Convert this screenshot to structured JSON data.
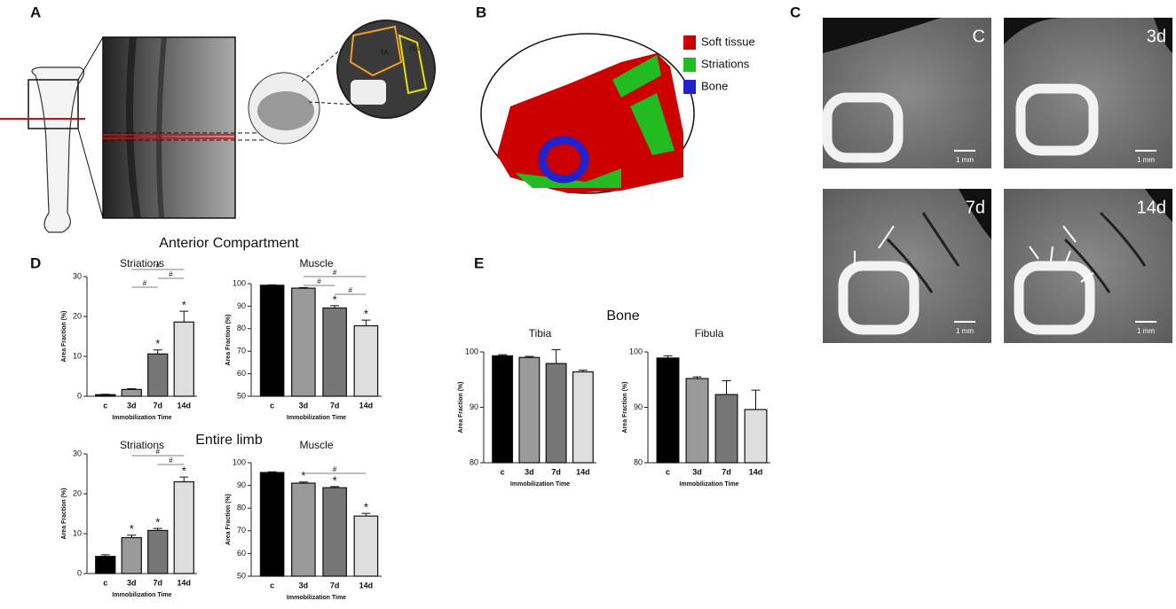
{
  "panels": {
    "letters": [
      "A",
      "B",
      "C",
      "D",
      "E"
    ],
    "a": {
      "muscles": [
        "TA",
        "EDL"
      ]
    },
    "b": {
      "legend": [
        {
          "name": "Soft tissue",
          "color": "#cc0000"
        },
        {
          "name": "Striations",
          "color": "#22bb22"
        },
        {
          "name": "Bone",
          "color": "#2222cc"
        }
      ]
    },
    "c": {
      "images": [
        "C",
        "3d",
        "7d",
        "14d"
      ],
      "scale": "1 mm"
    },
    "groups": [
      "Anterior Compartment",
      "Entire limb",
      "Bone"
    ]
  },
  "chart_data": [
    {
      "type": "bar",
      "title": "Striations",
      "ylabel": "Area Fraction (%)",
      "xlabel": "Immobilization Time",
      "categories": [
        "c",
        "3d",
        "7d",
        "14d"
      ],
      "values": [
        0.4,
        1.7,
        10.6,
        18.6
      ],
      "errors": [
        0.1,
        0.2,
        1.0,
        2.7
      ],
      "colors": [
        "#000000",
        "#9a9a9a",
        "#777777",
        "#dddddd"
      ],
      "significance": [
        null,
        null,
        "*",
        "*"
      ],
      "comparisons": [
        {
          "between": [
            "3d",
            "7d"
          ],
          "label": "#"
        },
        {
          "between": [
            "7d",
            "14d"
          ],
          "label": "#"
        },
        {
          "between": [
            "3d",
            "14d"
          ],
          "label": "#"
        }
      ],
      "ylim": [
        0,
        30
      ],
      "yticks": [
        0,
        10,
        20,
        30
      ]
    },
    {
      "type": "bar",
      "title": "Muscle",
      "ylabel": "Area Fraction (%)",
      "xlabel": "Immobilization Time",
      "categories": [
        "c",
        "3d",
        "7d",
        "14d"
      ],
      "values": [
        99.3,
        98.0,
        89.2,
        81.3
      ],
      "errors": [
        0.2,
        0.3,
        1.0,
        2.5
      ],
      "colors": [
        "#000000",
        "#9a9a9a",
        "#777777",
        "#dddddd"
      ],
      "significance": [
        null,
        null,
        "*",
        "*"
      ],
      "comparisons": [
        {
          "between": [
            "7d",
            "14d"
          ],
          "label": "#"
        },
        {
          "between": [
            "3d",
            "7d"
          ],
          "label": "#"
        },
        {
          "between": [
            "3d",
            "14d"
          ],
          "label": "#"
        }
      ],
      "ylim": [
        50,
        100
      ],
      "yticks": [
        50,
        60,
        70,
        80,
        90,
        100
      ]
    },
    {
      "type": "bar",
      "title": "Striations",
      "ylabel": "Area Fraction (%)",
      "xlabel": "Immobilization Time",
      "categories": [
        "c",
        "3d",
        "7d",
        "14d"
      ],
      "values": [
        4.3,
        9.0,
        10.8,
        23.0
      ],
      "errors": [
        0.4,
        0.6,
        0.5,
        1.2
      ],
      "colors": [
        "#000000",
        "#9a9a9a",
        "#777777",
        "#dddddd"
      ],
      "significance": [
        null,
        "*",
        "*",
        "*"
      ],
      "comparisons": [
        {
          "between": [
            "7d",
            "14d"
          ],
          "label": "#"
        },
        {
          "between": [
            "3d",
            "14d"
          ],
          "label": "#"
        }
      ],
      "ylim": [
        0,
        30
      ],
      "yticks": [
        0,
        10,
        20,
        30
      ]
    },
    {
      "type": "bar",
      "title": "Muscle",
      "ylabel": "Area Fraction (%)",
      "xlabel": "Immobilization Time",
      "categories": [
        "c",
        "3d",
        "7d",
        "14d"
      ],
      "values": [
        95.7,
        91.0,
        89.0,
        76.5
      ],
      "errors": [
        0.3,
        0.5,
        0.5,
        1.2
      ],
      "colors": [
        "#000000",
        "#9a9a9a",
        "#777777",
        "#dddddd"
      ],
      "significance": [
        null,
        "*",
        "*",
        "*"
      ],
      "comparisons": [
        {
          "between": [
            "3d",
            "14d"
          ],
          "label": "#"
        }
      ],
      "ylim": [
        50,
        100
      ],
      "yticks": [
        50,
        60,
        70,
        80,
        90,
        100
      ]
    },
    {
      "type": "bar",
      "title": "Tibia",
      "ylabel": "Area Fraction (%)",
      "xlabel": "Immobilization Time",
      "categories": [
        "c",
        "3d",
        "7d",
        "14d"
      ],
      "values": [
        99.3,
        99.0,
        97.9,
        96.4
      ],
      "errors": [
        0.2,
        0.2,
        2.5,
        0.3
      ],
      "colors": [
        "#000000",
        "#9a9a9a",
        "#777777",
        "#dddddd"
      ],
      "ylim": [
        80,
        100
      ],
      "yticks": [
        80,
        90,
        100
      ]
    },
    {
      "type": "bar",
      "title": "Fibula",
      "ylabel": "Area Fraction (%)",
      "xlabel": "Immobilization Time",
      "categories": [
        "c",
        "3d",
        "7d",
        "14d"
      ],
      "values": [
        98.9,
        95.2,
        92.3,
        89.6
      ],
      "errors": [
        0.4,
        0.3,
        2.5,
        3.5
      ],
      "colors": [
        "#000000",
        "#9a9a9a",
        "#777777",
        "#dddddd"
      ],
      "ylim": [
        80,
        100
      ],
      "yticks": [
        80,
        90,
        100
      ]
    }
  ]
}
